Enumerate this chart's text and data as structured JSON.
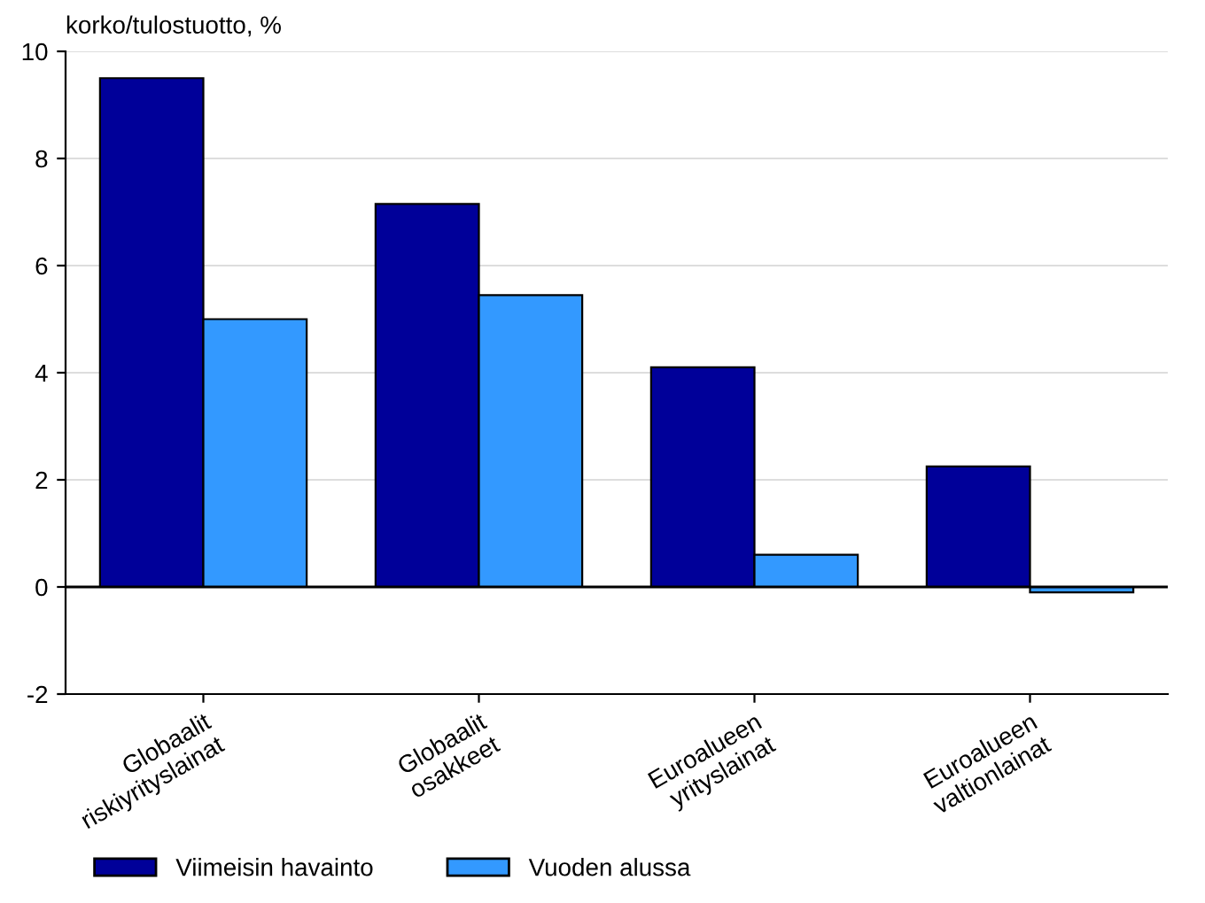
{
  "chart_data": {
    "type": "bar",
    "ylabel": "korko/tulostuotto, %",
    "categories": [
      "Globaalit\nriskiyrityslainat",
      "Globaalit\nosakkeet",
      "Euroalueen\nyrityslainat",
      "Euroalueen\nvaltionlainat"
    ],
    "series": [
      {
        "name": "Viimeisin havainto",
        "color": "#000099",
        "values": [
          9.5,
          7.15,
          4.1,
          2.25
        ]
      },
      {
        "name": "Vuoden alussa",
        "color": "#3399ff",
        "values": [
          5.0,
          5.45,
          0.6,
          -0.1
        ]
      }
    ],
    "ylim": [
      -2,
      10
    ],
    "yticks": [
      -2,
      0,
      2,
      4,
      6,
      8,
      10
    ],
    "grid": "y",
    "legend": "bottom",
    "ref_lines": [
      {
        "axis": "y",
        "value": 0,
        "color": "#000000"
      }
    ]
  }
}
